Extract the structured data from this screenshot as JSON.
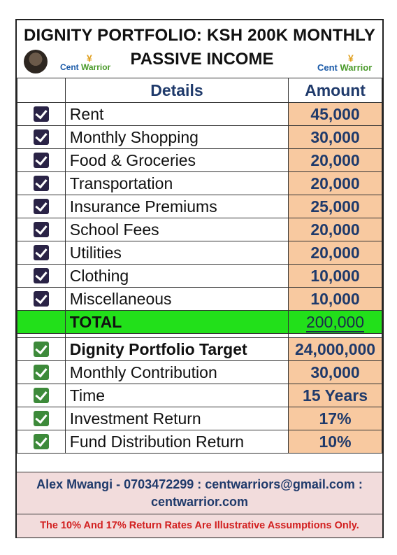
{
  "header": {
    "title_line1": "DIGNITY PORTFOLIO: KSH 200K MONTHLY",
    "title_line2": "PASSIVE INCOME",
    "logo_left_a": "Cent ",
    "logo_left_b": "Warrior",
    "logo_right_a": "Cent ",
    "logo_right_b": "Warrior"
  },
  "table": {
    "col_details": "Details",
    "col_amount": "Amount",
    "expenses": [
      {
        "label": "Rent",
        "amount": "45,000"
      },
      {
        "label": "Monthly Shopping",
        "amount": "30,000"
      },
      {
        "label": "Food & Groceries",
        "amount": "20,000"
      },
      {
        "label": "Transportation",
        "amount": "20,000"
      },
      {
        "label": "Insurance Premiums",
        "amount": "25,000"
      },
      {
        "label": "School Fees",
        "amount": "20,000"
      },
      {
        "label": "Utilities",
        "amount": "20,000"
      },
      {
        "label": "Clothing",
        "amount": "10,000"
      },
      {
        "label": "Miscellaneous",
        "amount": "10,000"
      }
    ],
    "total_label": "TOTAL",
    "total_amount": "200,000",
    "plan": [
      {
        "label": "Dignity Portfolio Target",
        "amount": "24,000,000"
      },
      {
        "label": "Monthly Contribution",
        "amount": "30,000"
      },
      {
        "label": "Time",
        "amount": "15 Years"
      },
      {
        "label": "Investment Return",
        "amount": "17%"
      },
      {
        "label": "Fund Distribution Return",
        "amount": "10%"
      }
    ]
  },
  "footer": {
    "contact_line1": "Alex Mwangi - 0703472299 : centwarriors@gmail.com :",
    "contact_line2": "centwarrior.com",
    "disclaimer": "The 10% And 17% Return Rates Are Illustrative Assumptions Only."
  },
  "colors": {
    "amount_bg": "#f8c9a0",
    "total_bg": "#22e01a",
    "footer_bg": "#f2dcdc",
    "disclaimer_text": "#d22020",
    "heading_text": "#1f3a6b"
  },
  "icons": {
    "expense_check": "checked-checkbox-dark-icon",
    "plan_check": "checked-checkbox-green-icon"
  }
}
